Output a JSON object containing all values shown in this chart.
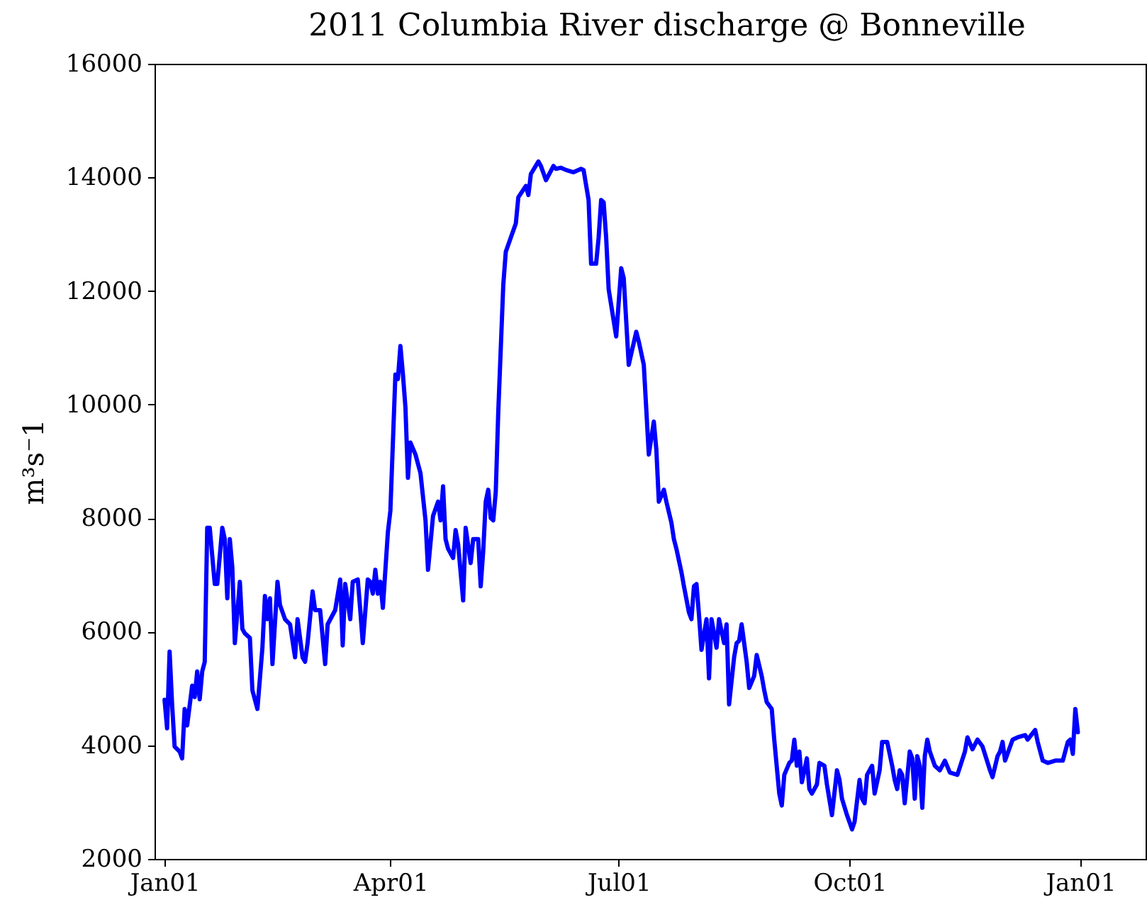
{
  "chart_data": {
    "type": "line",
    "title": "2011 Columbia River discharge @ Bonneville",
    "ylabel": "m³s⁻1",
    "x": [
      "2011-01-01",
      "2011-01-02",
      "2011-01-03",
      "2011-01-04",
      "2011-01-05",
      "2011-01-07",
      "2011-01-08",
      "2011-01-09",
      "2011-01-10",
      "2011-01-12",
      "2011-01-13",
      "2011-01-14",
      "2011-01-15",
      "2011-01-16",
      "2011-01-17",
      "2011-01-18",
      "2011-01-19",
      "2011-01-21",
      "2011-01-22",
      "2011-01-24",
      "2011-01-25",
      "2011-01-26",
      "2011-01-27",
      "2011-01-28",
      "2011-01-29",
      "2011-01-31",
      "2011-02-01",
      "2011-02-02",
      "2011-02-04",
      "2011-02-05",
      "2011-02-07",
      "2011-02-09",
      "2011-02-10",
      "2011-02-11",
      "2011-02-12",
      "2011-02-13",
      "2011-02-15",
      "2011-02-16",
      "2011-02-18",
      "2011-02-20",
      "2011-02-22",
      "2011-02-23",
      "2011-02-25",
      "2011-02-26",
      "2011-02-27",
      "2011-03-01",
      "2011-03-02",
      "2011-03-04",
      "2011-03-06",
      "2011-03-07",
      "2011-03-10",
      "2011-03-12",
      "2011-03-13",
      "2011-03-14",
      "2011-03-16",
      "2011-03-17",
      "2011-03-19",
      "2011-03-20",
      "2011-03-21",
      "2011-03-23",
      "2011-03-24",
      "2011-03-25",
      "2011-03-26",
      "2011-03-27",
      "2011-03-28",
      "2011-03-29",
      "2011-03-31",
      "2011-04-01",
      "2011-04-03",
      "2011-04-04",
      "2011-04-05",
      "2011-04-06",
      "2011-04-07",
      "2011-04-08",
      "2011-04-09",
      "2011-04-11",
      "2011-04-13",
      "2011-04-15",
      "2011-04-16",
      "2011-04-18",
      "2011-04-20",
      "2011-04-21",
      "2011-04-22",
      "2011-04-23",
      "2011-04-24",
      "2011-04-26",
      "2011-04-27",
      "2011-04-28",
      "2011-04-30",
      "2011-05-01",
      "2011-05-03",
      "2011-05-04",
      "2011-05-06",
      "2011-05-07",
      "2011-05-08",
      "2011-05-09",
      "2011-05-10",
      "2011-05-11",
      "2011-05-12",
      "2011-05-13",
      "2011-05-14",
      "2011-05-16",
      "2011-05-17",
      "2011-05-21",
      "2011-05-22",
      "2011-05-25",
      "2011-05-26",
      "2011-05-27",
      "2011-05-30",
      "2011-05-31",
      "2011-06-02",
      "2011-06-05",
      "2011-06-06",
      "2011-06-08",
      "2011-06-10",
      "2011-06-13",
      "2011-06-16",
      "2011-06-17",
      "2011-06-19",
      "2011-06-20",
      "2011-06-22",
      "2011-06-23",
      "2011-06-24",
      "2011-06-25",
      "2011-06-26",
      "2011-06-27",
      "2011-06-30",
      "2011-07-02",
      "2011-07-03",
      "2011-07-05",
      "2011-07-08",
      "2011-07-09",
      "2011-07-11",
      "2011-07-13",
      "2011-07-15",
      "2011-07-16",
      "2011-07-17",
      "2011-07-19",
      "2011-07-20",
      "2011-07-22",
      "2011-07-23",
      "2011-07-24",
      "2011-07-26",
      "2011-07-27",
      "2011-07-29",
      "2011-07-30",
      "2011-07-31",
      "2011-08-01",
      "2011-08-02",
      "2011-08-03",
      "2011-08-05",
      "2011-08-06",
      "2011-08-07",
      "2011-08-09",
      "2011-08-10",
      "2011-08-12",
      "2011-08-13",
      "2011-08-14",
      "2011-08-16",
      "2011-08-17",
      "2011-08-18",
      "2011-08-19",
      "2011-08-21",
      "2011-08-22",
      "2011-08-24",
      "2011-08-25",
      "2011-08-27",
      "2011-08-28",
      "2011-08-29",
      "2011-08-31",
      "2011-09-01",
      "2011-09-03",
      "2011-09-04",
      "2011-09-05",
      "2011-09-07",
      "2011-09-08",
      "2011-09-09",
      "2011-09-10",
      "2011-09-11",
      "2011-09-12",
      "2011-09-14",
      "2011-09-15",
      "2011-09-16",
      "2011-09-18",
      "2011-09-19",
      "2011-09-21",
      "2011-09-22",
      "2011-09-24",
      "2011-09-26",
      "2011-09-27",
      "2011-09-28",
      "2011-09-30",
      "2011-10-02",
      "2011-10-03",
      "2011-10-05",
      "2011-10-06",
      "2011-10-07",
      "2011-10-08",
      "2011-10-10",
      "2011-10-11",
      "2011-10-13",
      "2011-10-14",
      "2011-10-16",
      "2011-10-18",
      "2011-10-19",
      "2011-10-20",
      "2011-10-21",
      "2011-10-22",
      "2011-10-23",
      "2011-10-25",
      "2011-10-26",
      "2011-10-27",
      "2011-10-28",
      "2011-10-29",
      "2011-10-30",
      "2011-10-31",
      "2011-11-01",
      "2011-11-02",
      "2011-11-04",
      "2011-11-06",
      "2011-11-08",
      "2011-11-10",
      "2011-11-13",
      "2011-11-16",
      "2011-11-17",
      "2011-11-19",
      "2011-11-21",
      "2011-11-23",
      "2011-11-26",
      "2011-11-27",
      "2011-11-29",
      "2011-11-30",
      "2011-12-01",
      "2011-12-02",
      "2011-12-05",
      "2011-12-07",
      "2011-12-10",
      "2011-12-11",
      "2011-12-14",
      "2011-12-15",
      "2011-12-17",
      "2011-12-19",
      "2011-12-22",
      "2011-12-25",
      "2011-12-27",
      "2011-12-28",
      "2011-12-29",
      "2011-12-30",
      "2011-12-31"
    ],
    "series": [
      {
        "color": "#0000ff",
        "values": [
          4800,
          4300,
          5650,
          4720,
          3980,
          3890,
          3770,
          4640,
          4350,
          5050,
          4850,
          5300,
          4810,
          5300,
          5470,
          7830,
          7830,
          6840,
          6840,
          7830,
          7630,
          6590,
          7630,
          7130,
          5800,
          6880,
          6050,
          5970,
          5890,
          4970,
          4640,
          5720,
          6630,
          6220,
          6590,
          5430,
          6880,
          6470,
          6220,
          6130,
          5550,
          6220,
          5550,
          5470,
          5800,
          6710,
          6380,
          6380,
          5430,
          6130,
          6380,
          6920,
          5760,
          6840,
          6220,
          6880,
          6920,
          6380,
          5800,
          6920,
          6880,
          6670,
          7090,
          6670,
          6880,
          6420,
          7750,
          8130,
          10530,
          10450,
          11030,
          10530,
          9950,
          8710,
          9330,
          9120,
          8790,
          7960,
          7090,
          8040,
          8290,
          7960,
          8560,
          7630,
          7460,
          7300,
          7790,
          7540,
          6550,
          7830,
          7210,
          7630,
          7630,
          6800,
          7420,
          8290,
          8500,
          8000,
          7960,
          8460,
          9870,
          12110,
          12690,
          13190,
          13650,
          13850,
          13690,
          14060,
          14280,
          14200,
          13950,
          14200,
          14150,
          14170,
          14130,
          14090,
          14150,
          14130,
          13600,
          12480,
          12480,
          12940,
          13600,
          13560,
          12940,
          12030,
          11200,
          12400,
          12230,
          10700,
          11280,
          11110,
          10700,
          9120,
          9700,
          9210,
          8290,
          8500,
          8290,
          7920,
          7630,
          7460,
          7050,
          6800,
          6340,
          6220,
          6800,
          6840,
          6300,
          5680,
          6220,
          5180,
          6220,
          5720,
          6220,
          5800,
          6130,
          4720,
          5550,
          5800,
          5840,
          6130,
          5470,
          5010,
          5220,
          5590,
          5220,
          4970,
          4760,
          4640,
          4100,
          3150,
          2940,
          3480,
          3690,
          3730,
          4100,
          3640,
          3890,
          3350,
          3770,
          3230,
          3150,
          3310,
          3690,
          3640,
          3310,
          2770,
          3560,
          3390,
          3060,
          2770,
          2520,
          2650,
          3390,
          3060,
          2980,
          3480,
          3640,
          3150,
          3560,
          4060,
          4060,
          3640,
          3390,
          3230,
          3560,
          3480,
          2980,
          3890,
          3770,
          3060,
          3810,
          3640,
          2900,
          3810,
          4100,
          3890,
          3640,
          3560,
          3730,
          3520,
          3480,
          3890,
          4140,
          3930,
          4100,
          3980,
          3560,
          3440,
          3810,
          3890,
          4060,
          3730,
          4100,
          4140,
          4180,
          4100,
          4270,
          4060,
          3730,
          3690,
          3730,
          3730,
          4060,
          4100,
          3850,
          4640,
          4230
        ]
      }
    ],
    "xlim": [
      "2010-12-28",
      "2012-01-27"
    ],
    "xticks": [
      {
        "value": "2011-01-01",
        "label": "Jan01"
      },
      {
        "value": "2011-04-01",
        "label": "Apr01"
      },
      {
        "value": "2011-07-01",
        "label": "Jul01"
      },
      {
        "value": "2011-10-01",
        "label": "Oct01"
      },
      {
        "value": "2012-01-01",
        "label": "Jan01"
      }
    ],
    "ylim": [
      2000,
      16000
    ],
    "yticks": [
      2000,
      4000,
      6000,
      8000,
      10000,
      12000,
      14000,
      16000
    ],
    "line_style": "solid"
  }
}
